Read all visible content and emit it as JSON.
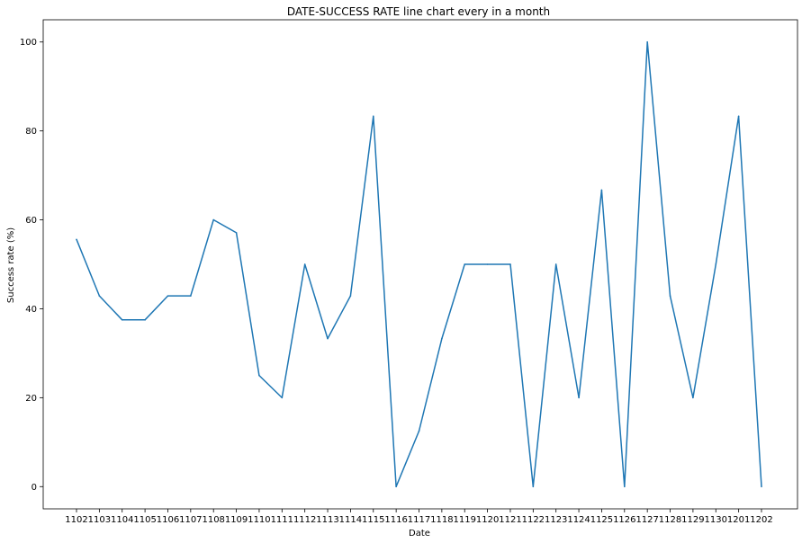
{
  "chart_data": {
    "type": "line",
    "title": "DATE-SUCCESS RATE line chart every in a month",
    "xlabel": "Date",
    "ylabel": "Success rate (%)",
    "ylim": [
      -5,
      105
    ],
    "yticks": [
      0,
      20,
      40,
      60,
      80,
      100
    ],
    "grid": false,
    "categories": [
      "1102",
      "1103",
      "1104",
      "1105",
      "1106",
      "1107",
      "1108",
      "1109",
      "1110",
      "1111",
      "1112",
      "1113",
      "1114",
      "1115",
      "1116",
      "1117",
      "1118",
      "1119",
      "1120",
      "1121",
      "1122",
      "1123",
      "1124",
      "1125",
      "1126",
      "1127",
      "1128",
      "1129",
      "1130",
      "1201",
      "1202"
    ],
    "series": [
      {
        "color": "#1f77b4",
        "values": [
          55.6,
          42.9,
          37.5,
          37.5,
          42.9,
          42.9,
          60,
          57.1,
          25,
          20,
          50,
          33.3,
          42.9,
          83.3,
          0,
          12.5,
          33.3,
          50,
          50,
          50,
          0,
          50,
          20,
          66.7,
          0,
          100,
          42.9,
          20,
          50,
          83.3,
          0
        ]
      }
    ]
  }
}
